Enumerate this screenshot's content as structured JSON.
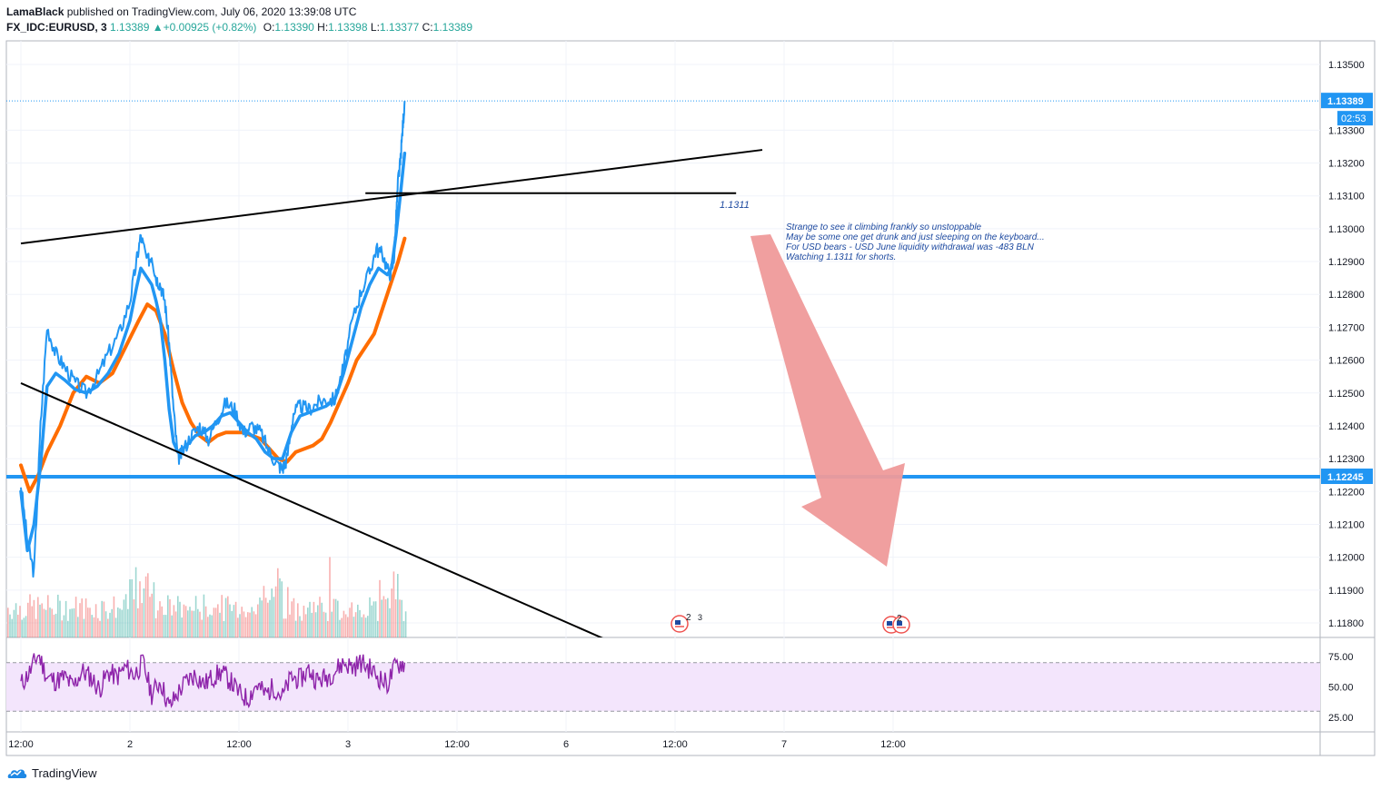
{
  "header": {
    "author": "LamaBlack",
    "published_text": "published on TradingView.com, July 06, 2020 13:39:08 UTC",
    "symbol": "FX_IDC:EURUSD, 3",
    "last": "1.13389",
    "change": "+0.00925 (+0.82%)",
    "o_label": "O:",
    "o_value": "1.13390",
    "h_label": "H:",
    "h_value": "1.13398",
    "l_label": "L:",
    "l_value": "1.13377",
    "c_label": "C:",
    "c_value": "1.13389"
  },
  "footer": {
    "brand": "TradingView"
  },
  "colors": {
    "price": "#2196f3",
    "ma_fast": "#2196f3",
    "ma_slow": "#ff6d00",
    "trendline": "#000000",
    "arrow": "#ef9a9a",
    "rsi": "#8e24aa",
    "rsi_band": "#f3e5fc",
    "vol_up": "#26a69a",
    "vol_down": "#ef5350",
    "note": "#1e4aa0"
  },
  "chart_data": [
    {
      "type": "line",
      "title": "",
      "ylim": [
        1.1175,
        1.1355
      ],
      "y_ticks": [
        "1.13500",
        "1.13300",
        "1.13200",
        "1.13100",
        "1.13000",
        "1.12900",
        "1.12800",
        "1.12700",
        "1.12600",
        "1.12500",
        "1.12400",
        "1.12300",
        "1.12200",
        "1.12100",
        "1.12000",
        "1.11900",
        "1.11800"
      ],
      "x_ticks": [
        "12:00",
        "2",
        "12:00",
        "3",
        "12:00",
        "6",
        "12:00",
        "7",
        "12:00"
      ],
      "price_badge": "1.13389",
      "countdown_badge": "02:53",
      "level_badge": "1.12245",
      "level_value": 1.12245,
      "annotation_level_label": "1.1311",
      "annotation_level": 1.1311,
      "note_lines": [
        "Strange to see it climbing frankly so unstoppable",
        "May be some one get drunk and just sleeping on the keyboard...",
        "For USD bears - USD June liquidity withdrawal was -483 BLN",
        "Watching 1.1311 for shorts."
      ],
      "event_badges": [
        "2",
        "3",
        "2"
      ],
      "series": [
        {
          "name": "price",
          "points": [
            [
              0,
              1.1222
            ],
            [
              0.03,
              1.1205
            ],
            [
              0.06,
              1.1195
            ],
            [
              0.09,
              1.124
            ],
            [
              0.12,
              1.127
            ],
            [
              0.16,
              1.1262
            ],
            [
              0.2,
              1.1258
            ],
            [
              0.25,
              1.1253
            ],
            [
              0.3,
              1.125
            ],
            [
              0.35,
              1.1255
            ],
            [
              0.4,
              1.1262
            ],
            [
              0.45,
              1.1268
            ],
            [
              0.5,
              1.1278
            ],
            [
              0.53,
              1.129
            ],
            [
              0.55,
              1.1298
            ],
            [
              0.58,
              1.129
            ],
            [
              0.6,
              1.1292
            ],
            [
              0.62,
              1.1285
            ],
            [
              0.64,
              1.1283
            ],
            [
              0.66,
              1.1278
            ],
            [
              0.68,
              1.1265
            ],
            [
              0.7,
              1.1245
            ],
            [
              0.72,
              1.123
            ],
            [
              0.74,
              1.1232
            ],
            [
              0.78,
              1.1237
            ],
            [
              0.82,
              1.124
            ],
            [
              0.86,
              1.1236
            ],
            [
              0.9,
              1.1242
            ],
            [
              0.94,
              1.1247
            ],
            [
              0.98,
              1.1245
            ],
            [
              1.02,
              1.1238
            ],
            [
              1.06,
              1.124
            ],
            [
              1.1,
              1.1238
            ],
            [
              1.14,
              1.1232
            ],
            [
              1.18,
              1.1228
            ],
            [
              1.2,
              1.1227
            ],
            [
              1.22,
              1.123
            ],
            [
              1.25,
              1.1244
            ],
            [
              1.28,
              1.1246
            ],
            [
              1.32,
              1.1245
            ],
            [
              1.36,
              1.1247
            ],
            [
              1.4,
              1.1248
            ],
            [
              1.44,
              1.1248
            ],
            [
              1.48,
              1.1258
            ],
            [
              1.52,
              1.1272
            ],
            [
              1.56,
              1.1281
            ],
            [
              1.6,
              1.1287
            ],
            [
              1.63,
              1.1294
            ],
            [
              1.66,
              1.1292
            ],
            [
              1.69,
              1.1286
            ],
            [
              1.71,
              1.129
            ],
            [
              1.72,
              1.1302
            ],
            [
              1.73,
              1.1315
            ],
            [
              1.74,
              1.132
            ],
            [
              1.75,
              1.133
            ],
            [
              1.76,
              1.13389
            ]
          ]
        },
        {
          "name": "ma_fast",
          "points": [
            [
              0,
              1.122
            ],
            [
              0.03,
              1.1202
            ],
            [
              0.06,
              1.121
            ],
            [
              0.09,
              1.1228
            ],
            [
              0.12,
              1.1252
            ],
            [
              0.16,
              1.1256
            ],
            [
              0.2,
              1.1254
            ],
            [
              0.25,
              1.1251
            ],
            [
              0.3,
              1.125
            ],
            [
              0.35,
              1.1252
            ],
            [
              0.4,
              1.1256
            ],
            [
              0.45,
              1.1262
            ],
            [
              0.5,
              1.1272
            ],
            [
              0.53,
              1.1282
            ],
            [
              0.55,
              1.1288
            ],
            [
              0.58,
              1.1285
            ],
            [
              0.6,
              1.1283
            ],
            [
              0.62,
              1.1278
            ],
            [
              0.64,
              1.1272
            ],
            [
              0.66,
              1.126
            ],
            [
              0.68,
              1.1245
            ],
            [
              0.7,
              1.1235
            ],
            [
              0.72,
              1.1232
            ],
            [
              0.76,
              1.1234
            ],
            [
              0.8,
              1.1237
            ],
            [
              0.84,
              1.1238
            ],
            [
              0.88,
              1.124
            ],
            [
              0.92,
              1.1243
            ],
            [
              0.96,
              1.1244
            ],
            [
              1.0,
              1.1241
            ],
            [
              1.04,
              1.1238
            ],
            [
              1.08,
              1.1236
            ],
            [
              1.12,
              1.1232
            ],
            [
              1.16,
              1.123
            ],
            [
              1.2,
              1.123
            ],
            [
              1.24,
              1.1238
            ],
            [
              1.28,
              1.1243
            ],
            [
              1.32,
              1.1244
            ],
            [
              1.36,
              1.1245
            ],
            [
              1.4,
              1.1246
            ],
            [
              1.44,
              1.1248
            ],
            [
              1.48,
              1.1256
            ],
            [
              1.52,
              1.1266
            ],
            [
              1.56,
              1.1276
            ],
            [
              1.6,
              1.1283
            ],
            [
              1.64,
              1.1288
            ],
            [
              1.68,
              1.1286
            ],
            [
              1.7,
              1.1288
            ],
            [
              1.72,
              1.1298
            ],
            [
              1.74,
              1.131
            ],
            [
              1.76,
              1.1323
            ]
          ]
        },
        {
          "name": "ma_slow",
          "points": [
            [
              0,
              1.1228
            ],
            [
              0.04,
              1.122
            ],
            [
              0.08,
              1.1225
            ],
            [
              0.12,
              1.1232
            ],
            [
              0.18,
              1.124
            ],
            [
              0.24,
              1.125
            ],
            [
              0.3,
              1.1255
            ],
            [
              0.36,
              1.1253
            ],
            [
              0.42,
              1.1256
            ],
            [
              0.48,
              1.1264
            ],
            [
              0.54,
              1.1272
            ],
            [
              0.58,
              1.1277
            ],
            [
              0.62,
              1.1275
            ],
            [
              0.66,
              1.1268
            ],
            [
              0.7,
              1.1257
            ],
            [
              0.74,
              1.1247
            ],
            [
              0.78,
              1.1241
            ],
            [
              0.82,
              1.1237
            ],
            [
              0.86,
              1.1235
            ],
            [
              0.9,
              1.1237
            ],
            [
              0.94,
              1.1238
            ],
            [
              0.98,
              1.1238
            ],
            [
              1.02,
              1.1238
            ],
            [
              1.06,
              1.1237
            ],
            [
              1.1,
              1.1236
            ],
            [
              1.14,
              1.1233
            ],
            [
              1.18,
              1.123
            ],
            [
              1.22,
              1.1229
            ],
            [
              1.26,
              1.1232
            ],
            [
              1.3,
              1.1233
            ],
            [
              1.34,
              1.1234
            ],
            [
              1.38,
              1.1236
            ],
            [
              1.42,
              1.1241
            ],
            [
              1.46,
              1.1247
            ],
            [
              1.5,
              1.1253
            ],
            [
              1.54,
              1.126
            ],
            [
              1.58,
              1.1264
            ],
            [
              1.62,
              1.1268
            ],
            [
              1.66,
              1.1276
            ],
            [
              1.7,
              1.1284
            ],
            [
              1.73,
              1.129
            ],
            [
              1.76,
              1.1297
            ]
          ]
        }
      ],
      "trendlines": [
        {
          "name": "upper",
          "from": [
            0,
            1.12955
          ],
          "to": [
            3.4,
            1.1324
          ]
        },
        {
          "name": "lower",
          "from": [
            0,
            1.1253
          ],
          "to": [
            2.68,
            1.1175
          ]
        },
        {
          "name": "short_level",
          "from": [
            1.58,
            1.13108
          ],
          "to": [
            3.28,
            1.13108
          ]
        }
      ]
    },
    {
      "type": "line",
      "title": "",
      "ylim": [
        20,
        82
      ],
      "y_ticks": [
        "75.00",
        "50.00",
        "25.00"
      ],
      "band": [
        30,
        70
      ],
      "series": [
        {
          "name": "rsi",
          "points": [
            [
              0,
              52
            ],
            [
              0.04,
              62
            ],
            [
              0.08,
              77
            ],
            [
              0.12,
              58
            ],
            [
              0.16,
              55
            ],
            [
              0.2,
              58
            ],
            [
              0.24,
              50
            ],
            [
              0.28,
              63
            ],
            [
              0.32,
              58
            ],
            [
              0.36,
              48
            ],
            [
              0.4,
              62
            ],
            [
              0.44,
              58
            ],
            [
              0.48,
              66
            ],
            [
              0.52,
              60
            ],
            [
              0.56,
              70
            ],
            [
              0.6,
              44
            ],
            [
              0.64,
              55
            ],
            [
              0.68,
              33
            ],
            [
              0.72,
              45
            ],
            [
              0.76,
              55
            ],
            [
              0.8,
              60
            ],
            [
              0.84,
              52
            ],
            [
              0.88,
              58
            ],
            [
              0.92,
              62
            ],
            [
              0.96,
              55
            ],
            [
              1.0,
              45
            ],
            [
              1.04,
              40
            ],
            [
              1.08,
              52
            ],
            [
              1.12,
              44
            ],
            [
              1.16,
              50
            ],
            [
              1.2,
              42
            ],
            [
              1.24,
              58
            ],
            [
              1.28,
              56
            ],
            [
              1.32,
              64
            ],
            [
              1.36,
              55
            ],
            [
              1.4,
              58
            ],
            [
              1.44,
              63
            ],
            [
              1.48,
              70
            ],
            [
              1.52,
              66
            ],
            [
              1.56,
              70
            ],
            [
              1.6,
              65
            ],
            [
              1.64,
              58
            ],
            [
              1.68,
              52
            ],
            [
              1.72,
              68
            ],
            [
              1.76,
              70
            ]
          ]
        }
      ]
    }
  ]
}
